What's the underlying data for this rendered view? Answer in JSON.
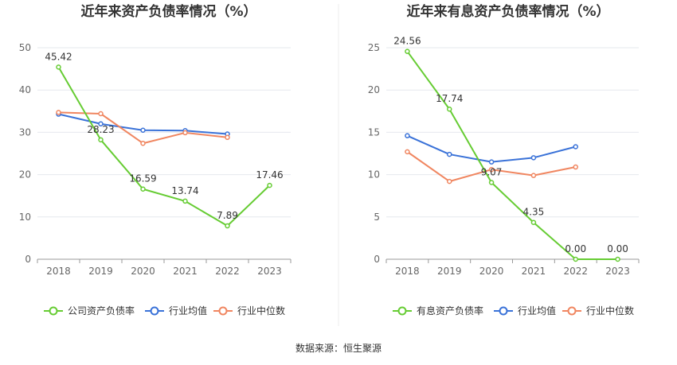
{
  "source_text": "数据来源：恒生聚源",
  "chart_data": [
    {
      "type": "line",
      "title": "近年来资产负债率情况（%）",
      "categories": [
        "2018",
        "2019",
        "2020",
        "2021",
        "2022",
        "2023"
      ],
      "ylim": [
        0,
        50
      ],
      "yticks": [
        "0",
        "10",
        "20",
        "30",
        "40",
        "50"
      ],
      "grid": true,
      "legend_position": "bottom",
      "series": [
        {
          "name": "公司资产负债率",
          "color": "#66cc33",
          "values": [
            45.42,
            28.23,
            16.59,
            13.74,
            7.89,
            17.46
          ],
          "labels": [
            "45.42",
            "28.23",
            "16.59",
            "13.74",
            "7.89",
            "17.46"
          ]
        },
        {
          "name": "行业均值",
          "color": "#3a72d8",
          "values": [
            34.3,
            32.0,
            30.5,
            30.4,
            29.6,
            null
          ],
          "labels": []
        },
        {
          "name": "行业中位数",
          "color": "#f08660",
          "values": [
            34.7,
            34.4,
            27.4,
            29.9,
            28.8,
            null
          ],
          "labels": []
        }
      ]
    },
    {
      "type": "line",
      "title": "近年来有息资产负债率情况（%）",
      "categories": [
        "2018",
        "2019",
        "2020",
        "2021",
        "2022",
        "2023"
      ],
      "ylim": [
        0,
        25
      ],
      "yticks": [
        "0",
        "5",
        "10",
        "15",
        "20",
        "25"
      ],
      "grid": true,
      "legend_position": "bottom",
      "series": [
        {
          "name": "有息资产负债率",
          "color": "#66cc33",
          "values": [
            24.56,
            17.74,
            9.07,
            4.35,
            0.0,
            0.0
          ],
          "labels": [
            "24.56",
            "17.74",
            "9.07",
            "4.35",
            "0.00",
            "0.00"
          ]
        },
        {
          "name": "行业均值",
          "color": "#3a72d8",
          "values": [
            14.6,
            12.4,
            11.5,
            12.0,
            13.3,
            null
          ],
          "labels": []
        },
        {
          "name": "行业中位数",
          "color": "#f08660",
          "values": [
            12.7,
            9.2,
            10.6,
            9.9,
            10.9,
            null
          ],
          "labels": []
        }
      ]
    }
  ]
}
